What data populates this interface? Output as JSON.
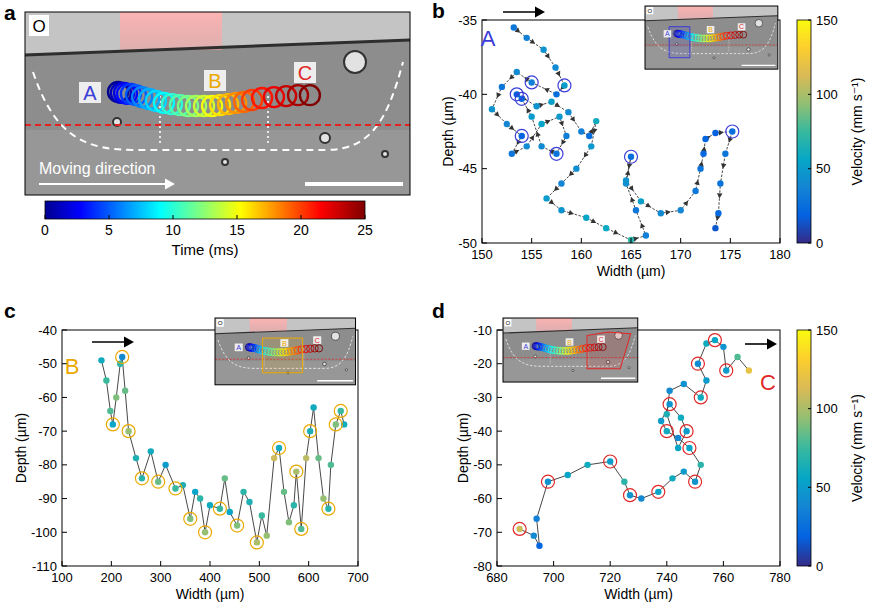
{
  "chart_data": [
    {
      "type": "scatter",
      "title": "a",
      "annotations": [
        "O",
        "A",
        "B",
        "C",
        "Moving direction"
      ],
      "xlim": [
        0,
        1200
      ],
      "ylim": [
        570,
        0
      ],
      "tick_labels": false,
      "series": [
        {
          "marker": "ring",
          "x": [
            290,
            299,
            309,
            318,
            330,
            346,
            365,
            387,
            408,
            433,
            458,
            483,
            508,
            533,
            558,
            583,
            608,
            633,
            658,
            683,
            708,
            739,
            776,
            814,
            851,
            888
          ],
          "values": [
            249,
            252,
            252,
            255,
            255,
            259,
            265,
            271,
            277,
            283,
            287,
            290,
            293,
            293,
            293,
            293,
            290,
            287,
            283,
            280,
            274,
            268,
            265,
            262,
            259,
            259
          ],
          "time": [
            0,
            1,
            2,
            3,
            4,
            5,
            6,
            7,
            8,
            9,
            10,
            11,
            12,
            13,
            14,
            15,
            16,
            17,
            18,
            19,
            20,
            21,
            22,
            23,
            24,
            25
          ]
        }
      ],
      "colorbar": {
        "label": "Time (ms)",
        "range": [
          0,
          25
        ],
        "ticks": [
          0,
          5,
          10,
          15,
          20,
          25
        ]
      }
    },
    {
      "type": "scatter",
      "title": "b",
      "color": "#3c3cd6",
      "annotations": [
        "A"
      ],
      "line_style": "arrow",
      "xlabel": "Width (µm)",
      "ylabel": "Depth (µm)",
      "xlim": [
        150,
        180
      ],
      "xticks": [
        150,
        155,
        160,
        165,
        170,
        175,
        180
      ],
      "ylim": [
        -50,
        -35
      ],
      "yticks": [
        -50,
        -45,
        -40,
        -35
      ],
      "series": [
        {
          "marker": "dot",
          "x": [
            153.2,
            154.5,
            156.2,
            157.4,
            158.3,
            157.5,
            155.0,
            153.5,
            152.0,
            151.0,
            152.5,
            154.0,
            153.0,
            154.5,
            156.0,
            157.8,
            158.5,
            157.5,
            156.0,
            155.0,
            154.0,
            153.5,
            155.5,
            157.0,
            158.7,
            160.0,
            160.8,
            161.5,
            161.0,
            159.5,
            158.0,
            156.5,
            158.0,
            160.5,
            162.5,
            165.0,
            166.5,
            165.5,
            164.5,
            165.0,
            164.5,
            166.0,
            168.0,
            170.0,
            171.5,
            172.0,
            172.3,
            172.5,
            173.5,
            175.2,
            174.5,
            174.0,
            173.8,
            173.5
          ],
          "values": [
            -35.5,
            -36.2,
            -37.0,
            -38.2,
            -39.4,
            -40.0,
            -39.2,
            -38.5,
            -39.5,
            -41.0,
            -42.0,
            -42.8,
            -44.0,
            -43.5,
            -42.0,
            -41.5,
            -42.8,
            -44.0,
            -43.5,
            -41.5,
            -40.3,
            -40.0,
            -40.8,
            -40.5,
            -41.2,
            -42.5,
            -42.8,
            -41.8,
            -43.5,
            -45.0,
            -46.0,
            -47.0,
            -47.8,
            -48.3,
            -49.0,
            -49.8,
            -49.5,
            -47.8,
            -46.0,
            -44.2,
            -45.8,
            -47.2,
            -48.0,
            -47.8,
            -46.5,
            -45.0,
            -44.0,
            -43.0,
            -42.6,
            -42.5,
            -44.0,
            -46.0,
            -48.0,
            -49.0
          ],
          "velocity": [
            30,
            35,
            45,
            40,
            50,
            25,
            35,
            40,
            30,
            45,
            38,
            20,
            30,
            42,
            55,
            48,
            35,
            28,
            40,
            50,
            20,
            18,
            45,
            52,
            40,
            35,
            25,
            60,
            48,
            42,
            38,
            50,
            45,
            55,
            58,
            70,
            35,
            30,
            42,
            25,
            45,
            52,
            40,
            38,
            30,
            28,
            22,
            20,
            18,
            25,
            30,
            28,
            22,
            15
          ]
        },
        {
          "marker": "ring",
          "x": [
            155.0,
            154.0,
            157.5,
            154.0,
            153.5,
            158.3,
            165.0,
            175.2
          ],
          "values": [
            -39.2,
            -42.8,
            -44.0,
            -40.3,
            -40.0,
            -39.4,
            -44.2,
            -42.5
          ]
        }
      ],
      "colorbar": {
        "label": "Velocity (mm s⁻¹)",
        "range": [
          0,
          150
        ],
        "ticks": [
          0,
          50,
          100,
          150
        ]
      }
    },
    {
      "type": "scatter",
      "title": "c",
      "color": "#eaa800",
      "annotations": [
        "B"
      ],
      "line_style": "solid",
      "xlabel": "Width (µm)",
      "ylabel": "Depth (µm)",
      "xlim": [
        100,
        700
      ],
      "xticks": [
        100,
        200,
        300,
        400,
        500,
        600,
        700
      ],
      "ylim": [
        -110,
        -40
      ],
      "yticks": [
        -110,
        -100,
        -90,
        -80,
        -70,
        -60,
        -50,
        -40
      ],
      "series": [
        {
          "marker": "dot",
          "x": [
            180,
            190,
            198,
            203,
            210,
            218,
            222,
            228,
            235,
            250,
            262,
            280,
            295,
            310,
            330,
            345,
            360,
            370,
            380,
            390,
            400,
            420,
            430,
            440,
            455,
            468,
            480,
            495,
            505,
            515,
            530,
            540,
            550,
            560,
            570,
            575,
            585,
            595,
            603,
            610,
            620,
            630,
            640,
            645,
            655,
            665,
            672
          ],
          "values": [
            -49,
            -55,
            -64,
            -68,
            -60,
            -50,
            -48,
            -58,
            -70,
            -78,
            -84,
            -76,
            -85,
            -80,
            -87,
            -86,
            -96,
            -88,
            -90,
            -100,
            -92,
            -93,
            -84,
            -94,
            -98,
            -88,
            -91,
            -103,
            -95,
            -101,
            -78,
            -75,
            -88,
            -97,
            -92,
            -82,
            -99,
            -78,
            -70,
            -63,
            -78,
            -90,
            -93,
            -80,
            -68,
            -64,
            -68
          ],
          "velocity": [
            60,
            75,
            80,
            55,
            90,
            70,
            40,
            85,
            95,
            65,
            70,
            60,
            85,
            50,
            75,
            65,
            90,
            55,
            70,
            95,
            60,
            75,
            85,
            55,
            90,
            70,
            65,
            100,
            75,
            95,
            110,
            60,
            85,
            90,
            70,
            100,
            80,
            105,
            65,
            60,
            85,
            95,
            70,
            80,
            90,
            75,
            60
          ]
        },
        {
          "marker": "ring",
          "x": [
            203,
            222,
            235,
            262,
            295,
            330,
            360,
            390,
            420,
            455,
            495,
            540,
            575,
            585,
            603,
            640,
            655,
            665
          ],
          "values": [
            -68,
            -48,
            -70,
            -84,
            -85,
            -87,
            -96,
            -100,
            -93,
            -98,
            -103,
            -75,
            -82,
            -99,
            -70,
            -93,
            -68,
            -64
          ]
        }
      ]
    },
    {
      "type": "scatter",
      "title": "d",
      "color": "#e02828",
      "annotations": [
        "C"
      ],
      "line_style": "solid",
      "xlabel": "Width (µm)",
      "ylabel": "Depth (µm)",
      "xlim": [
        680,
        780
      ],
      "xticks": [
        680,
        700,
        720,
        740,
        760,
        780
      ],
      "ylim": [
        -80,
        -10
      ],
      "yticks": [
        -80,
        -70,
        -60,
        -50,
        -40,
        -30,
        -20,
        -10
      ],
      "series": [
        {
          "marker": "dot",
          "x": [
            688,
            693,
            695,
            694,
            698,
            705,
            712,
            720,
            725,
            727,
            731,
            737,
            742,
            746,
            750,
            752,
            748,
            744,
            740,
            738,
            741,
            745,
            747,
            744,
            740,
            741,
            746,
            752,
            754,
            751,
            754,
            757,
            760,
            761,
            765,
            769
          ],
          "values": [
            -69,
            -71,
            -74,
            -66,
            -55,
            -53,
            -50,
            -49,
            -55,
            -59,
            -60,
            -58,
            -54,
            -52,
            -55,
            -50,
            -45,
            -42,
            -40,
            -37,
            -32,
            -36,
            -40,
            -45,
            -35,
            -28,
            -26,
            -30,
            -25,
            -20,
            -14,
            -13,
            -15,
            -22,
            -18,
            -22
          ],
          "velocity": [
            110,
            40,
            20,
            35,
            45,
            55,
            60,
            50,
            70,
            45,
            40,
            55,
            60,
            50,
            45,
            70,
            55,
            40,
            60,
            50,
            45,
            60,
            50,
            55,
            65,
            40,
            45,
            60,
            50,
            40,
            60,
            55,
            45,
            50,
            80,
            120
          ]
        },
        {
          "marker": "ring",
          "x": [
            688,
            698,
            720,
            727,
            737,
            750,
            748,
            740,
            741,
            747,
            752,
            751,
            757,
            761
          ],
          "values": [
            -69,
            -55,
            -49,
            -59,
            -58,
            -55,
            -45,
            -40,
            -32,
            -40,
            -30,
            -20,
            -13,
            -22
          ]
        }
      ],
      "colorbar": {
        "label": "Velocity (mm s⁻¹)",
        "range": [
          0,
          150
        ],
        "ticks": [
          0,
          50,
          100,
          150
        ]
      }
    }
  ]
}
